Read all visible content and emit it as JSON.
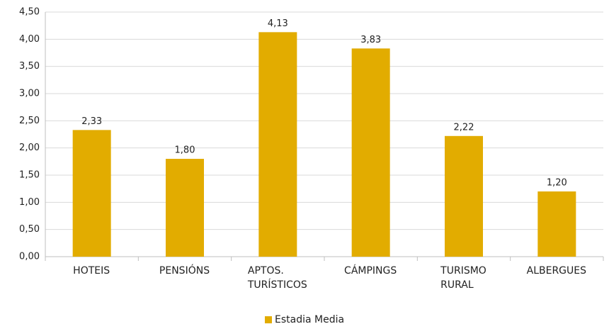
{
  "chart_data": {
    "type": "bar",
    "categories": [
      "HOTEIS",
      "PENSIÓNS",
      "APTOS. TURÍSTICOS",
      "CÁMPINGS",
      "TURISMO RURAL",
      "ALBERGUES"
    ],
    "series": [
      {
        "name": "Estadia Media",
        "color": "#e2ac00",
        "values": [
          2.33,
          1.8,
          4.13,
          3.83,
          2.22,
          1.2
        ],
        "value_labels": [
          "2,33",
          "1,80",
          "4,13",
          "3,83",
          "2,22",
          "1,20"
        ]
      }
    ],
    "ylim": [
      0,
      4.5
    ],
    "yticks": [
      {
        "value": 0,
        "label": "0,00"
      },
      {
        "value": 0.5,
        "label": "0,50"
      },
      {
        "value": 1,
        "label": "1,00"
      },
      {
        "value": 1.5,
        "label": "1,50"
      },
      {
        "value": 2,
        "label": "2,00"
      },
      {
        "value": 2.5,
        "label": "2,50"
      },
      {
        "value": 3,
        "label": "3,00"
      },
      {
        "value": 3.5,
        "label": "3,50"
      },
      {
        "value": 4,
        "label": "4,00"
      },
      {
        "value": 4.5,
        "label": "4,50"
      }
    ],
    "grid": true,
    "legend": "bottom"
  }
}
